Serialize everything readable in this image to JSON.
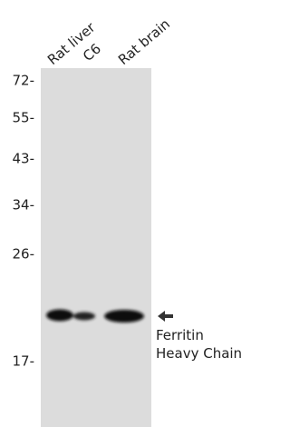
{
  "lanes": [
    "Rat liver",
    "C6",
    "Rat brain"
  ],
  "markers": [
    "72-",
    "55-",
    "43-",
    "34-",
    "26-",
    "17-"
  ],
  "target": {
    "lines": [
      "Ferritin",
      "Heavy Chain"
    ]
  }
}
